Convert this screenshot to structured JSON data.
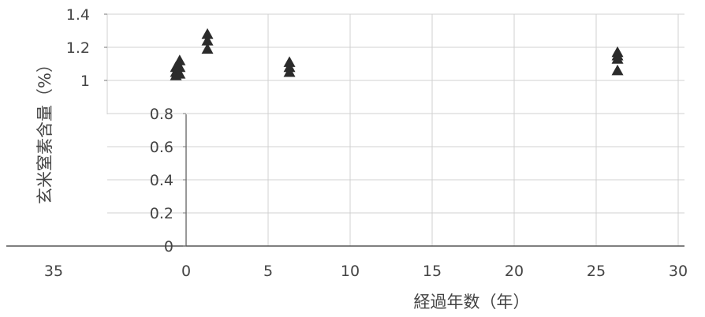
{
  "chart_data": {
    "type": "scatter",
    "title": "",
    "xlabel": "経過年数（年）",
    "ylabel": "玄米窒素含量（%）",
    "xlim": [
      -35,
      30
    ],
    "ylim": [
      0,
      1.4
    ],
    "x_ticks": [
      "35",
      "0",
      "5",
      "10",
      "15",
      "20",
      "25",
      "30"
    ],
    "y_ticks": [
      "0",
      "0.2",
      "0.4",
      "0.6",
      "0.8",
      "1",
      "1.2",
      "1.4"
    ],
    "grid": true,
    "legend": "none",
    "marker": "triangle",
    "marker_color": "#2b2b2b",
    "series": [
      {
        "x": [
          -2.7,
          -2.7,
          -2.7,
          -1.7,
          -1.7,
          -1.7,
          1.3,
          1.3,
          1.3,
          6.3,
          6.3,
          6.3,
          26.3,
          26.3,
          26.3,
          26.3
        ],
        "y": [
          1.08,
          1.05,
          1.03,
          1.12,
          1.08,
          1.04,
          1.28,
          1.24,
          1.19,
          1.11,
          1.08,
          1.05,
          1.17,
          1.15,
          1.13,
          1.06
        ]
      }
    ]
  }
}
